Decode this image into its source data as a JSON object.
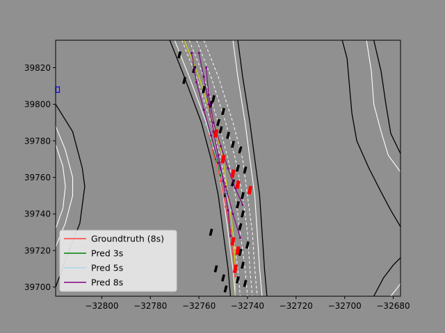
{
  "chart_data": {
    "type": "line",
    "title": "",
    "xlabel": "",
    "ylabel": "",
    "xlim": [
      -32819,
      -32677
    ],
    "ylim": [
      39695,
      39835
    ],
    "x_ticks": [
      -32800,
      -32780,
      -32760,
      -32740,
      -32720,
      -32700,
      -32680
    ],
    "y_ticks": [
      39700,
      39720,
      39740,
      39760,
      39780,
      39800,
      39820
    ],
    "x_tick_labels": [
      "−32800",
      "−32780",
      "−32760",
      "−32740",
      "−32720",
      "−32700",
      "−32680"
    ],
    "y_tick_labels": [
      "39700",
      "39720",
      "39740",
      "39760",
      "39780",
      "39800",
      "39820"
    ],
    "grid": false,
    "legend_position": "lower-left",
    "legend": [
      {
        "name": "Groundtruth (8s)",
        "color": "#ff4040"
      },
      {
        "name": "Pred 3s",
        "color": "#008000"
      },
      {
        "name": "Pred 5s",
        "color": "#add8e6"
      },
      {
        "name": "Pred 8s",
        "color": "#800080"
      }
    ],
    "colors": {
      "background": "#909090",
      "plot_area": "#909090",
      "road_edge": "#000000",
      "lane_line": "#ffffff",
      "reference_line": "#d8d800",
      "agent_box": "#000000",
      "ego_box": "#ff0000"
    },
    "road_edges": [
      [
        [
          -32772,
          39835
        ],
        [
          -32766,
          39815
        ],
        [
          -32759,
          39790
        ],
        [
          -32755,
          39770
        ],
        [
          -32752,
          39750
        ],
        [
          -32750,
          39730
        ],
        [
          -32748,
          39710
        ],
        [
          -32747,
          39695
        ]
      ],
      [
        [
          -32744,
          39835
        ],
        [
          -32742,
          39815
        ],
        [
          -32739,
          39790
        ],
        [
          -32737,
          39770
        ],
        [
          -32735,
          39750
        ],
        [
          -32734,
          39730
        ],
        [
          -32733,
          39710
        ],
        [
          -32732,
          39695
        ]
      ],
      [
        [
          -32819,
          39800
        ],
        [
          -32812,
          39785
        ],
        [
          -32808,
          39765
        ],
        [
          -32807,
          39755
        ],
        [
          -32809,
          39735
        ],
        [
          -32814,
          39718
        ],
        [
          -32819,
          39700
        ]
      ],
      [
        [
          -32701,
          39835
        ],
        [
          -32699,
          39825
        ],
        [
          -32698,
          39810
        ],
        [
          -32697,
          39795
        ],
        [
          -32695,
          39780
        ],
        [
          -32690,
          39765
        ],
        [
          -32685,
          39752
        ],
        [
          -32681,
          39742
        ],
        [
          -32677,
          39733
        ]
      ],
      [
        [
          -32688,
          39835
        ],
        [
          -32685,
          39818
        ],
        [
          -32683,
          39800
        ],
        [
          -32681,
          39784
        ],
        [
          -32677,
          39773
        ]
      ],
      [
        [
          -32688,
          39695
        ],
        [
          -32684,
          39705
        ],
        [
          -32680,
          39712
        ],
        [
          -32677,
          39716
        ]
      ]
    ],
    "lane_lines": [
      [
        [
          -32770,
          39835
        ],
        [
          -32764,
          39815
        ],
        [
          -32757,
          39790
        ],
        [
          -32753,
          39770
        ],
        [
          -32750,
          39750
        ],
        [
          -32748,
          39730
        ],
        [
          -32746,
          39710
        ],
        [
          -32745,
          39695
        ]
      ],
      [
        [
          -32746,
          39835
        ],
        [
          -32744,
          39815
        ],
        [
          -32741,
          39790
        ],
        [
          -32739,
          39770
        ],
        [
          -32737,
          39750
        ],
        [
          -32736,
          39730
        ],
        [
          -32735,
          39710
        ],
        [
          -32734,
          39695
        ]
      ],
      [
        [
          -32819,
          39788
        ],
        [
          -32815,
          39775
        ],
        [
          -32812,
          39760
        ],
        [
          -32812,
          39750
        ],
        [
          -32815,
          39735
        ],
        [
          -32819,
          39722
        ]
      ],
      [
        [
          -32819,
          39778
        ],
        [
          -32816,
          39766
        ],
        [
          -32815,
          39755
        ],
        [
          -32816,
          39743
        ],
        [
          -32819,
          39732
        ]
      ],
      [
        [
          -32691,
          39835
        ],
        [
          -32689,
          39818
        ],
        [
          -32688,
          39800
        ],
        [
          -32685,
          39785
        ],
        [
          -32682,
          39772
        ],
        [
          -32677,
          39763
        ]
      ],
      [
        [
          -32681,
          39695
        ],
        [
          -32678,
          39700
        ],
        [
          -32677,
          39702
        ]
      ]
    ],
    "dashed_lane_lines": [
      [
        [
          -32767,
          39835
        ],
        [
          -32761,
          39815
        ],
        [
          -32755,
          39790
        ],
        [
          -32751,
          39770
        ],
        [
          -32748,
          39750
        ],
        [
          -32746,
          39730
        ],
        [
          -32744,
          39710
        ],
        [
          -32743,
          39695
        ]
      ],
      [
        [
          -32764,
          39835
        ],
        [
          -32758,
          39815
        ],
        [
          -32752,
          39790
        ],
        [
          -32748,
          39770
        ],
        [
          -32745,
          39750
        ],
        [
          -32743,
          39730
        ],
        [
          -32741,
          39710
        ],
        [
          -32740,
          39695
        ]
      ],
      [
        [
          -32761,
          39835
        ],
        [
          -32755,
          39815
        ],
        [
          -32749,
          39790
        ],
        [
          -32745,
          39770
        ],
        [
          -32742,
          39750
        ],
        [
          -32740,
          39730
        ],
        [
          -32739,
          39710
        ],
        [
          -32738,
          39695
        ]
      ],
      [
        [
          -32758,
          39835
        ],
        [
          -32752,
          39815
        ],
        [
          -32746,
          39790
        ],
        [
          -32742,
          39770
        ],
        [
          -32740,
          39750
        ],
        [
          -32738,
          39730
        ],
        [
          -32737,
          39710
        ],
        [
          -32736,
          39695
        ]
      ]
    ],
    "reference_line": [
      [
        -32766,
        39835
      ],
      [
        -32760,
        39815
      ],
      [
        -32754,
        39790
      ],
      [
        -32750,
        39770
      ],
      [
        -32748,
        39750
      ],
      [
        -32746,
        39730
      ],
      [
        -32745,
        39710
      ],
      [
        -32745,
        39695
      ]
    ],
    "series": [
      {
        "name": "Groundtruth (8s)",
        "points": [
          [
            -32757,
            39789
          ],
          [
            -32754,
            39773
          ],
          [
            -32751,
            39758
          ],
          [
            -32749,
            39744
          ],
          [
            -32747,
            39731
          ],
          [
            -32746,
            39718
          ],
          [
            -32745,
            39706
          ]
        ]
      },
      {
        "name": "Pred 3s",
        "points": [
          [
            -32757,
            39789
          ],
          [
            -32755,
            39780
          ],
          [
            -32753,
            39770
          ],
          [
            -32751,
            39761
          ]
        ]
      },
      {
        "name": "Pred 5s",
        "points": [
          [
            -32757,
            39789
          ],
          [
            -32754,
            39776
          ],
          [
            -32751,
            39763
          ],
          [
            -32749,
            39752
          ],
          [
            -32747,
            39742
          ]
        ]
      },
      {
        "name": "Pred 8s",
        "points": [
          [
            -32760,
            39828
          ],
          [
            -32758,
            39815
          ],
          [
            -32756,
            39800
          ],
          [
            -32754,
            39785
          ],
          [
            -32752,
            39772
          ],
          [
            -32750,
            39758
          ],
          [
            -32748,
            39742
          ],
          [
            -32747,
            39728
          ]
        ]
      },
      {
        "name": "Pred 8s",
        "points": [
          [
            -32763,
            39828
          ],
          [
            -32761,
            39812
          ],
          [
            -32758,
            39797
          ],
          [
            -32755,
            39783
          ],
          [
            -32752,
            39768
          ],
          [
            -32749,
            39755
          ],
          [
            -32746,
            39740
          ],
          [
            -32743,
            39727
          ]
        ]
      },
      {
        "name": "Pred 8s",
        "points": [
          [
            -32757,
            39820
          ],
          [
            -32756,
            39805
          ],
          [
            -32754,
            39790
          ],
          [
            -32751,
            39777
          ],
          [
            -32748,
            39765
          ],
          [
            -32745,
            39754
          ],
          [
            -32742,
            39745
          ]
        ]
      }
    ],
    "agents": [
      [
        -32768,
        39827
      ],
      [
        -32766,
        39813
      ],
      [
        -32762,
        39819
      ],
      [
        -32758,
        39808
      ],
      [
        -32755,
        39800
      ],
      [
        -32752,
        39790
      ],
      [
        -32754,
        39803
      ],
      [
        -32750,
        39796
      ],
      [
        -32751,
        39786
      ],
      [
        -32748,
        39783
      ],
      [
        -32746,
        39778
      ],
      [
        -32743,
        39775
      ],
      [
        -32744,
        39765
      ],
      [
        -32741,
        39764
      ],
      [
        -32742,
        39750
      ],
      [
        -32744,
        39745
      ],
      [
        -32742,
        39740
      ],
      [
        -32743,
        39733
      ],
      [
        -32740,
        39723
      ],
      [
        -32743,
        39719
      ],
      [
        -32742,
        39712
      ],
      [
        -32744,
        39704
      ],
      [
        -32741,
        39702
      ],
      [
        -32755,
        39730
      ],
      [
        -32753,
        39710
      ],
      [
        -32750,
        39705
      ],
      [
        -32749,
        39699
      ],
      [
        -32749,
        39751
      ],
      [
        -32746,
        39757
      ]
    ],
    "ego_boxes": [
      [
        -32753,
        39784
      ],
      [
        -32750,
        39770
      ],
      [
        -32746,
        39762
      ],
      [
        -32744,
        39756
      ],
      [
        -32739,
        39753
      ],
      [
        -32746,
        39725
      ],
      [
        -32744,
        39720
      ],
      [
        -32745,
        39710
      ]
    ],
    "blue_marker": [
      -32818,
      39808
    ]
  }
}
